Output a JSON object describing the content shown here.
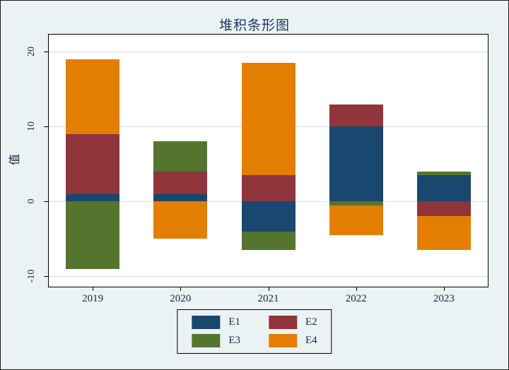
{
  "chart_data": {
    "type": "bar",
    "stacked": true,
    "title": "堆积条形图",
    "ylabel": "值",
    "categories": [
      "2019",
      "2020",
      "2021",
      "2022",
      "2023"
    ],
    "series": [
      {
        "name": "E1",
        "color": "#1a476f",
        "values": [
          1,
          1,
          -4,
          10,
          3.5
        ]
      },
      {
        "name": "E2",
        "color": "#90353b",
        "values": [
          8,
          3,
          3.5,
          3,
          -2
        ]
      },
      {
        "name": "E3",
        "color": "#55752f",
        "values": [
          -9,
          4,
          -2.5,
          -0.5,
          0.5
        ]
      },
      {
        "name": "E4",
        "color": "#e37e00",
        "values": [
          10,
          -5,
          15,
          -4,
          -4.5
        ]
      }
    ],
    "yticks": [
      -10,
      0,
      10,
      20
    ],
    "ylim": [
      -11.4,
      22.3
    ],
    "grid": true,
    "legend_position": "bottom-center"
  },
  "colors": {
    "background": "#eaf2f3",
    "plot_background": "#ffffff",
    "gridline": "#cfe4e7",
    "title_text": "#1f3864",
    "axis_text": "#13294b",
    "axis_line": "#000000"
  }
}
